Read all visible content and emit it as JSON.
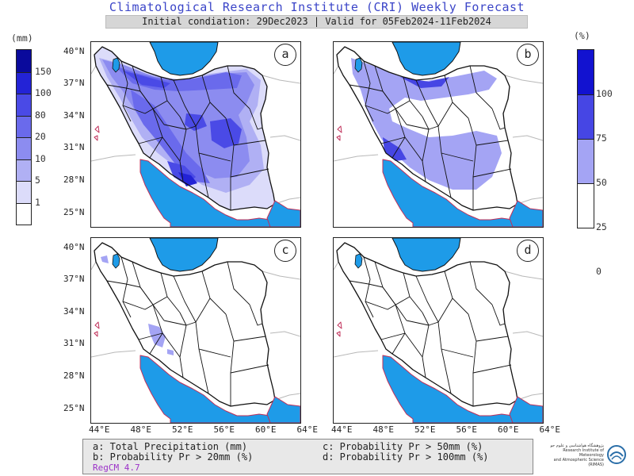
{
  "header": {
    "title": "Climatological Research Institute (CRI) Weekly Forecast",
    "subtitle": "Initial condiation: 29Dec2023 | Valid for 05Feb2024-11Feb2024"
  },
  "colorbar_left": {
    "unit": "(mm)",
    "labels": [
      "150",
      "100",
      "80",
      "20",
      "10",
      "5",
      "1"
    ],
    "colors": [
      "#0a0a9c",
      "#2323d6",
      "#4a4ae6",
      "#6a6aec",
      "#8c8cf0",
      "#b0b0f4",
      "#dcdcfa",
      "#ffffff"
    ]
  },
  "colorbar_right": {
    "unit": "(%)",
    "labels": [
      "100",
      "75",
      "50",
      "25",
      "0"
    ],
    "colors": [
      "#1212d0",
      "#4646e4",
      "#a4a4f4",
      "#ffffff"
    ]
  },
  "panels": [
    {
      "letter": "a"
    },
    {
      "letter": "b"
    },
    {
      "letter": "c"
    },
    {
      "letter": "d"
    }
  ],
  "axes": {
    "lat_labels": [
      "40°N",
      "37°N",
      "34°N",
      "31°N",
      "28°N",
      "25°N"
    ],
    "lon_labels": [
      "44°E",
      "48°E",
      "52°E",
      "56°E",
      "60°E",
      "64°E"
    ]
  },
  "legend": {
    "a": "a: Total Precipitation (mm)",
    "b": "b: Probability Pr > 20mm (%)",
    "c": "c: Probability Pr > 50mm (%)",
    "d": "d: Probability Pr > 100mm (%)",
    "model": "RegCM 4.7"
  },
  "logo": {
    "name_fa": "پژوهشگاه هواشناسی و علوم جو",
    "name_en_1": "Research Institute of Meteorology",
    "name_en_2": "and Atmospheric Science (RIMAS)"
  },
  "map_colors": {
    "sea": "#1e9be8",
    "border": "#111111",
    "coast": "#c0305a",
    "neighbor": "#b8b8b8"
  }
}
